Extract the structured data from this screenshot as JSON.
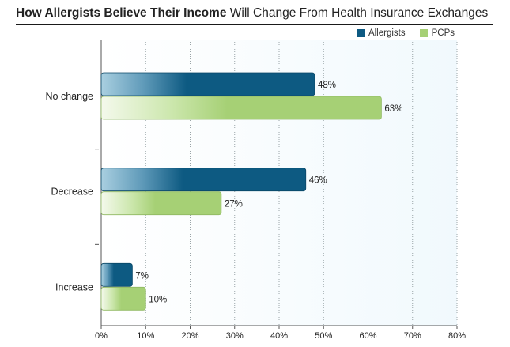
{
  "title": {
    "bold": "How Allergists Believe Their Income",
    "rest": "Will Change From Health Insurance Exchanges"
  },
  "colors": {
    "allergists": "#0d5a82",
    "pcps": "#a6d075",
    "plot_bg": "#f1f9fd"
  },
  "chart_data": {
    "type": "bar",
    "orientation": "horizontal",
    "title": "How Allergists Believe Their Income Will Change From Health Insurance Exchanges",
    "categories": [
      "No change",
      "Decrease",
      "Increase"
    ],
    "series": [
      {
        "name": "Allergists",
        "values": [
          48,
          46,
          7
        ],
        "labels": [
          "48%",
          "46%",
          "7%"
        ]
      },
      {
        "name": "PCPs",
        "values": [
          63,
          27,
          10
        ],
        "labels": [
          "63%",
          "27%",
          "10%"
        ]
      }
    ],
    "xlim": [
      0,
      80
    ],
    "xticks": [
      "0%",
      "10%",
      "20%",
      "30%",
      "40%",
      "50%",
      "60%",
      "70%",
      "80%"
    ],
    "grid": "vertical-dotted",
    "legend_position": "top-right"
  }
}
